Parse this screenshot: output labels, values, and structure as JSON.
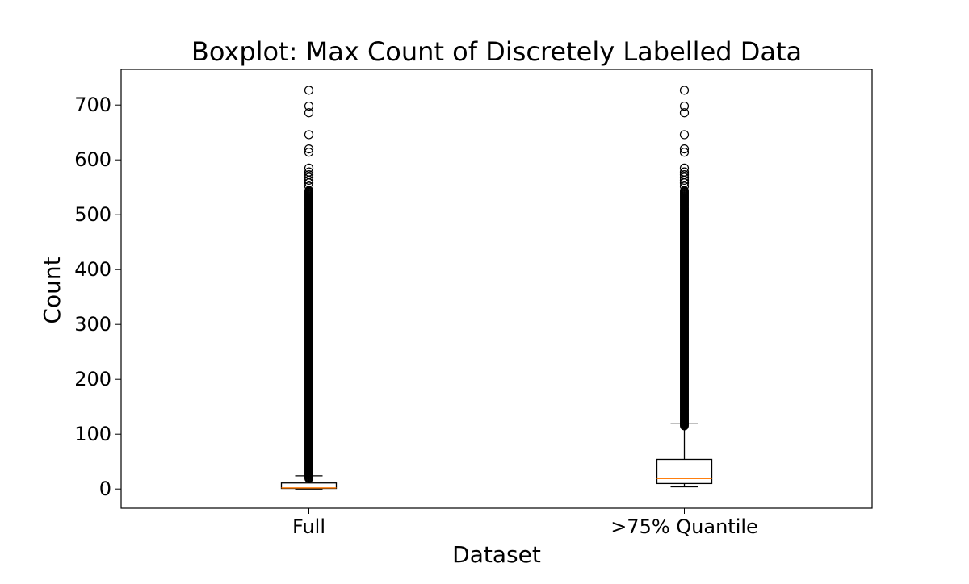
{
  "chart_data": {
    "type": "boxplot",
    "title": "Boxplot: Max Count of Discretely Labelled Data",
    "xlabel": "Dataset",
    "ylabel": "Count",
    "ylim": [
      -35,
      765
    ],
    "yticks": [
      0,
      100,
      200,
      300,
      400,
      500,
      600,
      700
    ],
    "grid": false,
    "colors": {
      "box": "#000000",
      "median": "#ff7f0e",
      "flier": "#000000"
    },
    "series": [
      {
        "category": "Full",
        "whisker_low": 0,
        "q1": 1,
        "median": 2,
        "q3": 11,
        "whisker_high": 24,
        "outliers_dense_range": [
          19,
          545
        ],
        "outliers": [
          552,
          558,
          563,
          568,
          573,
          578,
          585,
          614,
          620,
          646,
          686,
          698,
          727
        ]
      },
      {
        "category": ">75% Quantile",
        "whisker_low": 4,
        "q1": 10,
        "median": 19,
        "q3": 54,
        "whisker_high": 120,
        "outliers_dense_range": [
          115,
          545
        ],
        "outliers": [
          552,
          558,
          563,
          568,
          573,
          578,
          585,
          614,
          620,
          646,
          686,
          698,
          727
        ]
      }
    ]
  }
}
